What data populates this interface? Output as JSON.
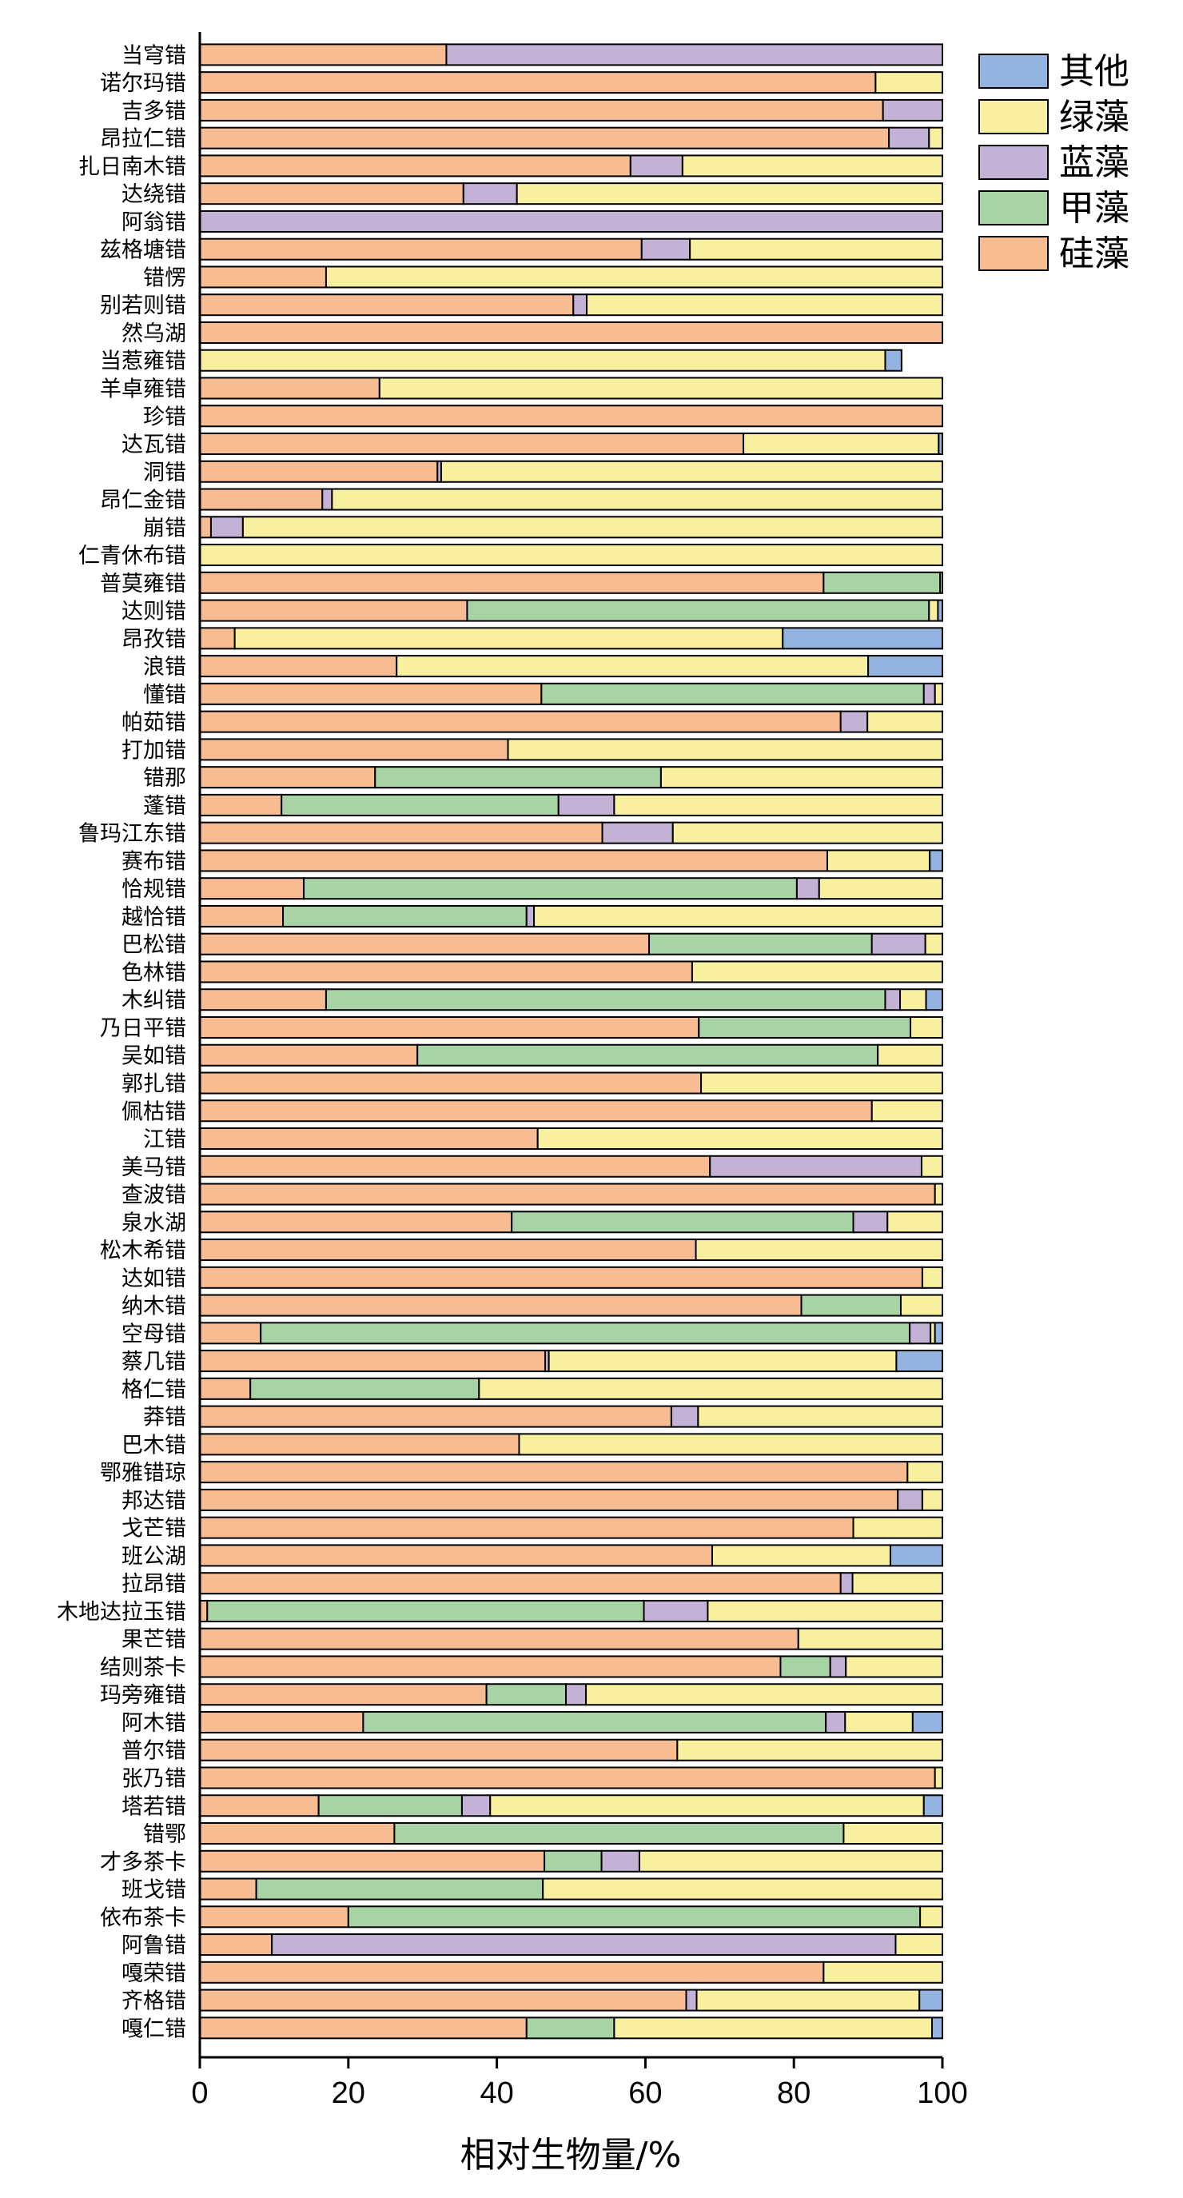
{
  "chart_data": {
    "type": "bar",
    "orientation": "horizontal",
    "stacked": true,
    "xlabel": "相对生物量/%",
    "ylabel": "",
    "xlim": [
      0,
      100
    ],
    "xticks": [
      "0",
      "20",
      "40",
      "60",
      "80",
      "100"
    ],
    "grid": false,
    "legend_position": "top-right",
    "categories": [
      "当穹错",
      "诺尔玛错",
      "吉多错",
      "昂拉仁错",
      "扎日南木错",
      "达绕错",
      "阿翁错",
      "兹格塘错",
      "错愣",
      "别若则错",
      "然乌湖",
      "当惹雍错",
      "羊卓雍错",
      "珍错",
      "达瓦错",
      "洞错",
      "昂仁金错",
      "崩错",
      "仁青休布错",
      "普莫雍错",
      "达则错",
      "昂孜错",
      "浪错",
      "懂错",
      "帕茹错",
      "打加错",
      "错那",
      "蓬错",
      "鲁玛江东错",
      "赛布错",
      "恰规错",
      "越恰错",
      "巴松错",
      "色林错",
      "木纠错",
      "乃日平错",
      "吴如错",
      "郭扎错",
      "佩枯错",
      "江错",
      "美马错",
      "查波错",
      "泉水湖",
      "松木希错",
      "达如错",
      "纳木错",
      "空母错",
      "蔡几错",
      "格仁错",
      "莽错",
      "巴木错",
      "鄂雅错琼",
      "邦达错",
      "戈芒错",
      "班公湖",
      "拉昂错",
      "木地达拉玉错",
      "果芒错",
      "结则茶卡",
      "玛旁雍错",
      "阿木错",
      "普尔错",
      "张乃错",
      "塔若错",
      "错鄂",
      "才多茶卡",
      "班戈错",
      "依布茶卡",
      "阿鲁错",
      "嘎荣错",
      "齐格错",
      "嘎仁错"
    ],
    "series": [
      {
        "name": "硅藻",
        "color": "#F8BC93",
        "values": [
          33.2,
          91.0,
          92.0,
          92.8,
          58.0,
          35.5,
          0.0,
          59.5,
          17.0,
          50.3,
          100.0,
          0.0,
          24.2,
          100.0,
          73.2,
          32.0,
          16.5,
          1.5,
          0.0,
          84.0,
          36.0,
          4.7,
          26.5,
          46.0,
          86.3,
          41.5,
          23.6,
          11.0,
          54.2,
          84.5,
          14.0,
          11.2,
          60.5,
          66.3,
          17.0,
          67.2,
          29.3,
          67.5,
          90.5,
          45.5,
          68.7,
          99.0,
          42.0,
          66.8,
          97.3,
          81.0,
          8.2,
          46.5,
          6.8,
          63.5,
          43.0,
          95.3,
          94.0,
          88.0,
          69.0,
          86.3,
          1.0,
          80.6,
          78.2,
          38.6,
          22.0,
          64.3,
          99.0,
          16.0,
          26.2,
          46.4,
          7.6,
          20.0,
          9.7,
          84.0,
          65.5,
          44.0
        ]
      },
      {
        "name": "甲藻",
        "color": "#A8D3A5",
        "values": [
          0.0,
          0.0,
          0.0,
          0.0,
          0.0,
          0.0,
          0.0,
          0.0,
          0.0,
          0.0,
          0.0,
          0.0,
          0.0,
          0.0,
          0.0,
          0.0,
          0.0,
          0.0,
          0.0,
          15.7,
          62.2,
          0.0,
          0.0,
          51.5,
          0.0,
          0.0,
          38.5,
          37.3,
          0.0,
          0.0,
          66.4,
          32.8,
          30.0,
          0.0,
          75.3,
          28.5,
          62.0,
          0.0,
          0.0,
          0.0,
          0.0,
          0.0,
          46.0,
          0.0,
          0.0,
          13.4,
          87.4,
          0.0,
          30.8,
          0.0,
          0.0,
          0.0,
          0.0,
          0.0,
          0.0,
          0.0,
          58.8,
          0.0,
          6.7,
          10.7,
          62.3,
          0.0,
          0.0,
          19.3,
          60.5,
          7.7,
          38.6,
          77.0,
          0.0,
          0.0,
          0.0,
          11.8
        ]
      },
      {
        "name": "蓝藻",
        "color": "#C4B2D6",
        "values": [
          66.8,
          0.0,
          8.0,
          5.4,
          7.0,
          7.2,
          100.0,
          6.5,
          0.0,
          1.8,
          0.0,
          0.0,
          0.0,
          0.0,
          0.0,
          0.5,
          1.3,
          4.3,
          0.0,
          0.0,
          0.0,
          0.0,
          0.0,
          1.5,
          3.6,
          0.0,
          0.0,
          7.5,
          9.5,
          0.0,
          3.0,
          1.0,
          7.2,
          0.0,
          2.0,
          0.0,
          0.0,
          0.0,
          0.0,
          0.0,
          28.5,
          0.0,
          4.6,
          0.0,
          0.0,
          0.0,
          2.8,
          0.5,
          0.0,
          3.6,
          0.0,
          0.0,
          3.3,
          0.0,
          0.0,
          1.6,
          8.6,
          0.0,
          2.1,
          2.7,
          2.6,
          0.0,
          0.0,
          3.8,
          0.0,
          5.1,
          0.0,
          0.0,
          84.0,
          0.0,
          1.4,
          0.0
        ]
      },
      {
        "name": "绿藻",
        "color": "#F8F09E",
        "values": [
          0.0,
          9.0,
          0.0,
          1.8,
          35.0,
          57.3,
          0.0,
          34.0,
          83.0,
          47.9,
          0.0,
          92.3,
          75.8,
          0.0,
          26.3,
          67.5,
          82.2,
          94.2,
          100.0,
          0.3,
          1.2,
          73.8,
          63.5,
          1.0,
          10.1,
          58.5,
          37.9,
          44.2,
          36.3,
          13.8,
          16.6,
          55.0,
          2.3,
          33.7,
          3.5,
          4.3,
          8.7,
          32.5,
          9.5,
          54.5,
          2.8,
          1.0,
          7.4,
          33.2,
          2.7,
          5.6,
          0.6,
          46.8,
          62.4,
          32.9,
          57.0,
          4.7,
          2.7,
          12.0,
          24.0,
          12.1,
          31.6,
          19.4,
          13.0,
          48.0,
          9.1,
          35.7,
          1.0,
          58.4,
          13.3,
          40.8,
          53.8,
          3.0,
          6.3,
          16.0,
          30.0,
          42.8
        ]
      },
      {
        "name": "其他",
        "color": "#93B3E0",
        "values": [
          0.0,
          0.0,
          0.0,
          0.0,
          0.0,
          0.0,
          0.0,
          0.0,
          0.0,
          0.0,
          0.0,
          2.2,
          0.0,
          0.0,
          0.5,
          0.0,
          0.0,
          0.0,
          0.0,
          0.0,
          0.6,
          21.5,
          10.0,
          0.0,
          0.0,
          0.0,
          0.0,
          0.0,
          0.0,
          1.7,
          0.0,
          0.0,
          0.0,
          0.0,
          2.2,
          0.0,
          0.0,
          0.0,
          0.0,
          0.0,
          0.0,
          0.0,
          0.0,
          0.0,
          0.0,
          0.0,
          1.0,
          6.2,
          0.0,
          0.0,
          0.0,
          0.0,
          0.0,
          0.0,
          7.0,
          0.0,
          0.0,
          0.0,
          0.0,
          0.0,
          4.0,
          0.0,
          0.0,
          2.5,
          0.0,
          0.0,
          0.0,
          0.0,
          0.0,
          0.0,
          3.1,
          1.4
        ]
      }
    ],
    "legend": [
      "其他",
      "绿藻",
      "蓝藻",
      "甲藻",
      "硅藻"
    ]
  }
}
